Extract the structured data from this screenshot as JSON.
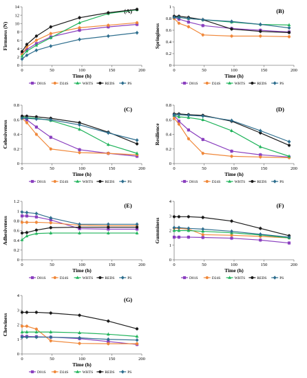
{
  "series_styles": [
    {
      "name": "D01S",
      "color": "#8a3fbf",
      "marker": "square"
    },
    {
      "name": "D24S",
      "color": "#f0883a",
      "marker": "circle"
    },
    {
      "name": "WHTS",
      "color": "#1fb35a",
      "marker": "triangle"
    },
    {
      "name": "REDS",
      "color": "#1a1a1a",
      "marker": "circle"
    },
    {
      "name": "PS",
      "color": "#2e6e8e",
      "marker": "diamond"
    }
  ],
  "chart_data": [
    {
      "type": "line",
      "label": "(A)",
      "ylabel": "Firmness (N)",
      "xlabel": "Time (h)",
      "x": [
        0,
        8,
        24,
        48,
        96,
        144,
        192
      ],
      "xlim": [
        0,
        200
      ],
      "xticks": [
        0,
        50,
        100,
        150,
        200
      ],
      "ylim": [
        0,
        14
      ],
      "yticks": [
        0,
        2,
        4,
        6,
        8,
        10,
        12,
        14
      ],
      "series": [
        {
          "name": "D01S",
          "values": [
            2.8,
            3.8,
            5.2,
            6.8,
            8.4,
            9.2,
            9.8
          ]
        },
        {
          "name": "D24S",
          "values": [
            2.6,
            4.4,
            6.0,
            7.6,
            9.0,
            9.6,
            10.2
          ]
        },
        {
          "name": "WHTS",
          "values": [
            2.2,
            3.4,
            4.8,
            6.6,
            10.2,
            12.4,
            13.3
          ]
        },
        {
          "name": "REDS",
          "values": [
            3.3,
            5.0,
            7.0,
            9.2,
            11.4,
            12.6,
            13.4
          ]
        },
        {
          "name": "PS",
          "values": [
            1.5,
            2.4,
            3.6,
            4.6,
            6.2,
            7.0,
            7.8
          ]
        }
      ]
    },
    {
      "type": "line",
      "label": "(B)",
      "ylabel": "Springiness",
      "xlabel": "Time (h)",
      "x": [
        0,
        8,
        24,
        48,
        96,
        144,
        192
      ],
      "xlim": [
        0,
        200
      ],
      "xticks": [
        0,
        50,
        100,
        150,
        200
      ],
      "ylim": [
        0,
        1
      ],
      "yticks": [
        0,
        0.2,
        0.4,
        0.6,
        0.8,
        1
      ],
      "series": [
        {
          "name": "D01S",
          "values": [
            0.82,
            0.79,
            0.74,
            0.68,
            0.63,
            0.6,
            0.57
          ]
        },
        {
          "name": "D24S",
          "values": [
            0.8,
            0.72,
            0.66,
            0.52,
            0.5,
            0.5,
            0.49
          ]
        },
        {
          "name": "WHTS",
          "values": [
            0.83,
            0.82,
            0.8,
            0.78,
            0.74,
            0.7,
            0.69
          ]
        },
        {
          "name": "REDS",
          "values": [
            0.84,
            0.84,
            0.82,
            0.78,
            0.62,
            0.58,
            0.56
          ]
        },
        {
          "name": "PS",
          "values": [
            0.82,
            0.82,
            0.8,
            0.78,
            0.75,
            0.7,
            0.64
          ]
        }
      ]
    },
    {
      "type": "line",
      "label": "(C)",
      "ylabel": "Cohesiveness",
      "xlabel": "Time (h)",
      "x": [
        0,
        8,
        24,
        48,
        96,
        144,
        192
      ],
      "xlim": [
        0,
        200
      ],
      "xticks": [
        0,
        50,
        100,
        150,
        200
      ],
      "ylim": [
        0,
        0.8
      ],
      "yticks": [
        0,
        0.2,
        0.4,
        0.6,
        0.8
      ],
      "series": [
        {
          "name": "D01S",
          "values": [
            0.63,
            0.6,
            0.5,
            0.36,
            0.19,
            0.14,
            0.1
          ]
        },
        {
          "name": "D24S",
          "values": [
            0.62,
            0.56,
            0.4,
            0.2,
            0.15,
            0.14,
            0.12
          ]
        },
        {
          "name": "WHTS",
          "values": [
            0.64,
            0.63,
            0.62,
            0.59,
            0.47,
            0.26,
            0.14
          ]
        },
        {
          "name": "REDS",
          "values": [
            0.65,
            0.65,
            0.64,
            0.62,
            0.56,
            0.43,
            0.27
          ]
        },
        {
          "name": "PS",
          "values": [
            0.62,
            0.62,
            0.61,
            0.6,
            0.53,
            0.42,
            0.32
          ]
        }
      ]
    },
    {
      "type": "line",
      "label": "(D)",
      "ylabel": "Resilience",
      "xlabel": "Time (h)",
      "x": [
        0,
        8,
        24,
        48,
        96,
        144,
        192
      ],
      "xlim": [
        0,
        200
      ],
      "xticks": [
        0,
        50,
        100,
        150,
        200
      ],
      "ylim": [
        0,
        0.8
      ],
      "yticks": [
        0,
        0.2,
        0.4,
        0.6,
        0.8
      ],
      "series": [
        {
          "name": "D01S",
          "values": [
            0.66,
            0.58,
            0.46,
            0.33,
            0.17,
            0.12,
            0.09
          ]
        },
        {
          "name": "D24S",
          "values": [
            0.62,
            0.54,
            0.34,
            0.14,
            0.1,
            0.09,
            0.08
          ]
        },
        {
          "name": "WHTS",
          "values": [
            0.66,
            0.64,
            0.63,
            0.6,
            0.45,
            0.23,
            0.1
          ]
        },
        {
          "name": "REDS",
          "values": [
            0.68,
            0.68,
            0.67,
            0.66,
            0.58,
            0.42,
            0.25
          ]
        },
        {
          "name": "PS",
          "values": [
            0.67,
            0.67,
            0.66,
            0.65,
            0.59,
            0.45,
            0.3
          ]
        }
      ]
    },
    {
      "type": "line",
      "label": "(E)",
      "ylabel": "Adhesiveness",
      "xlabel": "Time (h)",
      "x": [
        0,
        8,
        24,
        48,
        96,
        144,
        192
      ],
      "xlim": [
        0,
        200
      ],
      "xticks": [
        0,
        50,
        100,
        150,
        200
      ],
      "ylim": [
        0,
        1.2
      ],
      "yticks": [
        0,
        0.2,
        0.4,
        0.6,
        0.8,
        1,
        1.2
      ],
      "series": [
        {
          "name": "D01S",
          "values": [
            0.9,
            0.9,
            0.88,
            0.82,
            0.64,
            0.63,
            0.63
          ]
        },
        {
          "name": "D24S",
          "values": [
            0.77,
            0.77,
            0.77,
            0.76,
            0.71,
            0.7,
            0.7
          ]
        },
        {
          "name": "WHTS",
          "values": [
            0.41,
            0.49,
            0.54,
            0.55,
            0.55,
            0.55,
            0.55
          ]
        },
        {
          "name": "REDS",
          "values": [
            0.55,
            0.56,
            0.61,
            0.66,
            0.67,
            0.67,
            0.67
          ]
        },
        {
          "name": "PS",
          "values": [
            0.98,
            0.97,
            0.95,
            0.86,
            0.73,
            0.73,
            0.73
          ]
        }
      ]
    },
    {
      "type": "line",
      "label": "(F)",
      "ylabel": "Gumminess",
      "xlabel": "Time (h)",
      "x": [
        0,
        8,
        24,
        48,
        96,
        144,
        192
      ],
      "xlim": [
        0,
        200
      ],
      "xticks": [
        0,
        50,
        100,
        150,
        200
      ],
      "ylim": [
        0,
        4
      ],
      "yticks": [
        0,
        1,
        2,
        3,
        4
      ],
      "series": [
        {
          "name": "D01S",
          "values": [
            1.55,
            1.55,
            1.55,
            1.53,
            1.48,
            1.35,
            1.15
          ]
        },
        {
          "name": "D24S",
          "values": [
            2.15,
            2.15,
            2.1,
            1.72,
            1.68,
            1.6,
            1.5
          ]
        },
        {
          "name": "WHTS",
          "values": [
            2.0,
            2.0,
            2.0,
            1.95,
            1.85,
            1.7,
            1.5
          ]
        },
        {
          "name": "REDS",
          "values": [
            2.95,
            2.95,
            2.95,
            2.9,
            2.65,
            2.15,
            1.65
          ]
        },
        {
          "name": "PS",
          "values": [
            2.2,
            2.2,
            2.15,
            2.1,
            1.95,
            1.75,
            1.55
          ]
        }
      ]
    },
    {
      "type": "line",
      "label": "(G)",
      "ylabel": "Chewiness",
      "xlabel": "Time (h)",
      "x": [
        0,
        8,
        24,
        48,
        96,
        144,
        192
      ],
      "xlim": [
        0,
        200
      ],
      "xticks": [
        0,
        50,
        100,
        150,
        200
      ],
      "ylim": [
        0,
        4
      ],
      "yticks": [
        0,
        1,
        2,
        3,
        4
      ],
      "series": [
        {
          "name": "D01S",
          "values": [
            1.2,
            1.2,
            1.18,
            1.15,
            1.05,
            0.85,
            0.65
          ]
        },
        {
          "name": "D24S",
          "values": [
            1.9,
            1.9,
            1.7,
            0.9,
            0.72,
            0.7,
            0.7
          ]
        },
        {
          "name": "WHTS",
          "values": [
            1.5,
            1.5,
            1.5,
            1.5,
            1.45,
            1.35,
            1.2
          ]
        },
        {
          "name": "REDS",
          "values": [
            2.85,
            2.85,
            2.85,
            2.8,
            2.65,
            2.25,
            1.72
          ]
        },
        {
          "name": "PS",
          "values": [
            1.15,
            1.15,
            1.15,
            1.15,
            1.1,
            1.0,
            0.95
          ]
        }
      ]
    }
  ]
}
